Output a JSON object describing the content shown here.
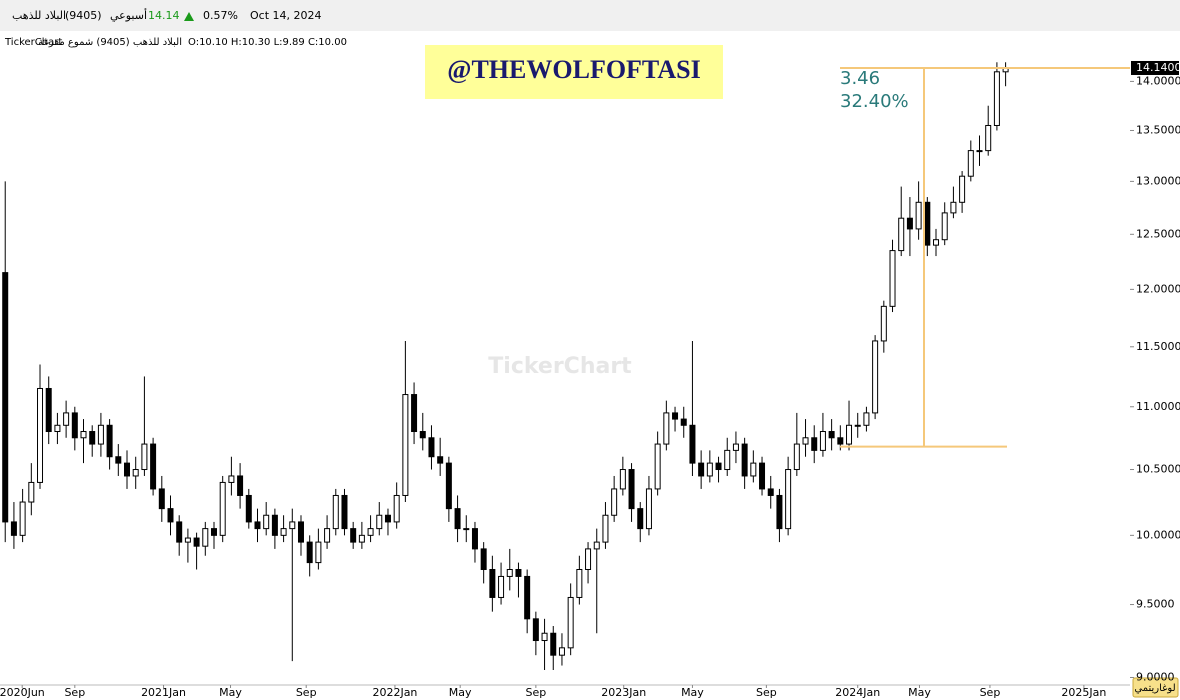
{
  "header": {
    "name": "البلاد للذهب",
    "code": "(9405)",
    "period": "أسبوعي",
    "price": "14.14",
    "change": "0.57%",
    "date": "Oct 14, 2024"
  },
  "chart_data": {
    "type": "candlestick",
    "brand": "TickerChart",
    "info": "البلاد للذهب (9405) شموع مفرغة",
    "ohlc_text": "O:10.10 H:10.30 L:9.89 C:10.00",
    "watermark": "@THEWOLFOFTASI",
    "scale_button": "لوغاريتمي",
    "colors": {
      "up": "#ffffff",
      "down": "#000000",
      "outline": "#000000",
      "measure": "#f5c87a",
      "measure_text": "#2a7a7a"
    },
    "log_scale": true,
    "ylim": [
      8.95,
      14.49
    ],
    "yticks": [
      {
        "value": 9,
        "label": "9.0000"
      },
      {
        "value": 9.5,
        "label": "9.5000"
      },
      {
        "value": 10,
        "label": "10.0000"
      },
      {
        "value": 10.5,
        "label": "10.5000"
      },
      {
        "value": 11,
        "label": "11.0000"
      },
      {
        "value": 11.5,
        "label": "11.5000"
      },
      {
        "value": 12,
        "label": "12.0000"
      },
      {
        "value": 12.5,
        "label": "12.5000"
      },
      {
        "value": 13,
        "label": "13.0000"
      },
      {
        "value": 13.5,
        "label": "13.5000"
      },
      {
        "value": 14,
        "label": "14.0000"
      }
    ],
    "xlim": [
      -0.6,
      129.3
    ],
    "xticks": [
      {
        "value": 1.95,
        "label": "2020Jun"
      },
      {
        "value": 8,
        "label": "Sep"
      },
      {
        "value": 18.2,
        "label": "2021Jan"
      },
      {
        "value": 25.9,
        "label": "May"
      },
      {
        "value": 34.6,
        "label": "Sep"
      },
      {
        "value": 44.8,
        "label": "2022Jan"
      },
      {
        "value": 52.3,
        "label": "May"
      },
      {
        "value": 61,
        "label": "Sep"
      },
      {
        "value": 71.1,
        "label": "2023Jan"
      },
      {
        "value": 79,
        "label": "May"
      },
      {
        "value": 87.5,
        "label": "Sep"
      },
      {
        "value": 98,
        "label": "2024Jan"
      },
      {
        "value": 105.1,
        "label": "May"
      },
      {
        "value": 113.2,
        "label": "Sep"
      },
      {
        "value": 124,
        "label": "2025Jan"
      }
    ],
    "last_price": {
      "value": 14.14,
      "label": "14.1400"
    },
    "measure": {
      "from": 10.68,
      "to": 14.14,
      "change": 3.46,
      "percent": 32.4,
      "percent_label": "32.40%"
    },
    "candles": [
      [
        12.15,
        13.0,
        9.95,
        10.1
      ],
      [
        10.1,
        10.25,
        9.9,
        10.0
      ],
      [
        10.0,
        10.35,
        9.95,
        10.25
      ],
      [
        10.25,
        10.55,
        10.15,
        10.4
      ],
      [
        10.4,
        11.35,
        10.35,
        11.15
      ],
      [
        11.15,
        11.25,
        10.7,
        10.8
      ],
      [
        10.8,
        10.95,
        10.7,
        10.85
      ],
      [
        10.85,
        11.05,
        10.75,
        10.95
      ],
      [
        10.95,
        11.0,
        10.65,
        10.75
      ],
      [
        10.75,
        10.9,
        10.55,
        10.8
      ],
      [
        10.8,
        10.85,
        10.6,
        10.7
      ],
      [
        10.7,
        10.95,
        10.6,
        10.85
      ],
      [
        10.85,
        10.9,
        10.5,
        10.6
      ],
      [
        10.6,
        10.7,
        10.45,
        10.55
      ],
      [
        10.55,
        10.65,
        10.35,
        10.45
      ],
      [
        10.45,
        10.6,
        10.35,
        10.5
      ],
      [
        10.5,
        11.25,
        10.45,
        10.7
      ],
      [
        10.7,
        10.75,
        10.3,
        10.35
      ],
      [
        10.35,
        10.45,
        10.1,
        10.2
      ],
      [
        10.2,
        10.3,
        10.0,
        10.1
      ],
      [
        10.1,
        10.15,
        9.85,
        9.95
      ],
      [
        9.95,
        10.05,
        9.8,
        9.98
      ],
      [
        9.98,
        10.02,
        9.75,
        9.92
      ],
      [
        9.92,
        10.1,
        9.85,
        10.05
      ],
      [
        10.05,
        10.1,
        9.9,
        10.0
      ],
      [
        10.0,
        10.45,
        9.95,
        10.4
      ],
      [
        10.4,
        10.6,
        10.3,
        10.45
      ],
      [
        10.45,
        10.55,
        10.2,
        10.3
      ],
      [
        10.3,
        10.35,
        10.05,
        10.1
      ],
      [
        10.1,
        10.2,
        9.95,
        10.05
      ],
      [
        10.05,
        10.25,
        10.0,
        10.15
      ],
      [
        10.15,
        10.2,
        9.9,
        10.0
      ],
      [
        10.0,
        10.15,
        9.95,
        10.05
      ],
      [
        10.05,
        10.2,
        9.11,
        10.1
      ],
      [
        10.1,
        10.15,
        9.85,
        9.95
      ],
      [
        9.95,
        10.0,
        9.7,
        9.8
      ],
      [
        9.8,
        10.05,
        9.75,
        9.95
      ],
      [
        9.95,
        10.15,
        9.9,
        10.05
      ],
      [
        10.05,
        10.35,
        10.0,
        10.3
      ],
      [
        10.3,
        10.35,
        10.0,
        10.05
      ],
      [
        10.05,
        10.1,
        9.9,
        9.95
      ],
      [
        9.95,
        10.1,
        9.9,
        10.0
      ],
      [
        10.0,
        10.15,
        9.95,
        10.05
      ],
      [
        10.05,
        10.25,
        10.0,
        10.15
      ],
      [
        10.15,
        10.2,
        10.0,
        10.1
      ],
      [
        10.1,
        10.4,
        10.05,
        10.3
      ],
      [
        10.3,
        11.55,
        10.25,
        11.1
      ],
      [
        11.1,
        11.2,
        10.7,
        10.8
      ],
      [
        10.8,
        10.95,
        10.65,
        10.75
      ],
      [
        10.75,
        10.85,
        10.5,
        10.6
      ],
      [
        10.6,
        10.75,
        10.45,
        10.55
      ],
      [
        10.55,
        10.6,
        10.1,
        10.2
      ],
      [
        10.2,
        10.3,
        9.95,
        10.05
      ],
      [
        10.05,
        10.15,
        9.95,
        10.05
      ],
      [
        10.05,
        10.1,
        9.8,
        9.9
      ],
      [
        9.9,
        9.95,
        9.65,
        9.75
      ],
      [
        9.75,
        9.85,
        9.45,
        9.55
      ],
      [
        9.55,
        9.8,
        9.5,
        9.7
      ],
      [
        9.7,
        9.9,
        9.6,
        9.75
      ],
      [
        9.75,
        9.8,
        9.55,
        9.7
      ],
      [
        9.7,
        9.75,
        9.3,
        9.4
      ],
      [
        9.4,
        9.45,
        9.15,
        9.25
      ],
      [
        9.25,
        9.4,
        9.05,
        9.3
      ],
      [
        9.3,
        9.35,
        9.05,
        9.15
      ],
      [
        9.15,
        9.3,
        9.08,
        9.2
      ],
      [
        9.2,
        9.65,
        9.15,
        9.55
      ],
      [
        9.55,
        9.85,
        9.5,
        9.75
      ],
      [
        9.75,
        9.95,
        9.65,
        9.9
      ],
      [
        9.9,
        10.05,
        9.3,
        9.95
      ],
      [
        9.95,
        10.25,
        9.9,
        10.15
      ],
      [
        10.15,
        10.45,
        10.1,
        10.35
      ],
      [
        10.35,
        10.6,
        10.3,
        10.5
      ],
      [
        10.5,
        10.55,
        10.1,
        10.2
      ],
      [
        10.2,
        10.25,
        9.95,
        10.05
      ],
      [
        10.05,
        10.45,
        10.0,
        10.35
      ],
      [
        10.35,
        10.8,
        10.3,
        10.7
      ],
      [
        10.7,
        11.05,
        10.65,
        10.95
      ],
      [
        10.95,
        11.0,
        10.8,
        10.9
      ],
      [
        10.9,
        11.0,
        10.75,
        10.85
      ],
      [
        10.85,
        11.55,
        10.45,
        10.55
      ],
      [
        10.55,
        10.65,
        10.35,
        10.45
      ],
      [
        10.45,
        10.65,
        10.4,
        10.55
      ],
      [
        10.55,
        10.6,
        10.4,
        10.5
      ],
      [
        10.5,
        10.75,
        10.45,
        10.65
      ],
      [
        10.65,
        10.8,
        10.55,
        10.7
      ],
      [
        10.7,
        10.75,
        10.35,
        10.45
      ],
      [
        10.45,
        10.65,
        10.4,
        10.55
      ],
      [
        10.55,
        10.6,
        10.3,
        10.35
      ],
      [
        10.35,
        10.45,
        10.2,
        10.3
      ],
      [
        10.3,
        10.35,
        9.95,
        10.05
      ],
      [
        10.05,
        10.6,
        10.0,
        10.5
      ],
      [
        10.5,
        10.95,
        10.45,
        10.7
      ],
      [
        10.7,
        10.9,
        10.6,
        10.75
      ],
      [
        10.75,
        10.85,
        10.55,
        10.65
      ],
      [
        10.65,
        10.95,
        10.6,
        10.8
      ],
      [
        10.8,
        10.9,
        10.65,
        10.75
      ],
      [
        10.75,
        10.85,
        10.65,
        10.7
      ],
      [
        10.7,
        11.05,
        10.65,
        10.85
      ],
      [
        10.85,
        10.95,
        10.75,
        10.85
      ],
      [
        10.85,
        11.0,
        10.8,
        10.95
      ],
      [
        10.95,
        11.6,
        10.9,
        11.55
      ],
      [
        11.55,
        11.9,
        11.45,
        11.85
      ],
      [
        11.85,
        12.45,
        11.8,
        12.35
      ],
      [
        12.35,
        12.95,
        12.3,
        12.65
      ],
      [
        12.65,
        12.85,
        12.3,
        12.55
      ],
      [
        12.55,
        13.0,
        12.45,
        12.8
      ],
      [
        12.8,
        12.85,
        12.3,
        12.4
      ],
      [
        12.4,
        12.55,
        12.3,
        12.45
      ],
      [
        12.45,
        12.8,
        12.4,
        12.7
      ],
      [
        12.7,
        12.95,
        12.65,
        12.8
      ],
      [
        12.8,
        13.1,
        12.7,
        13.05
      ],
      [
        13.05,
        13.4,
        13.0,
        13.3
      ],
      [
        13.3,
        13.45,
        13.15,
        13.3
      ],
      [
        13.3,
        13.75,
        13.25,
        13.55
      ],
      [
        13.55,
        14.2,
        13.5,
        14.1
      ],
      [
        14.1,
        14.2,
        13.95,
        14.14
      ]
    ]
  }
}
